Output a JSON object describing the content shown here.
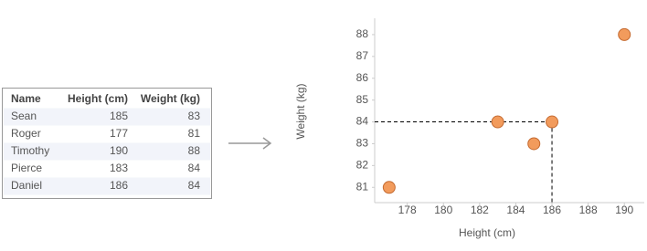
{
  "table": {
    "columns": [
      "Name",
      "Height (cm)",
      "Weight (kg)"
    ],
    "rows": [
      [
        "Sean",
        185,
        83
      ],
      [
        "Roger",
        177,
        81
      ],
      [
        "Timothy",
        190,
        88
      ],
      [
        "Pierce",
        183,
        84
      ],
      [
        "Daniel",
        186,
        84
      ]
    ]
  },
  "chart_data": {
    "type": "scatter",
    "x_label": "Height (cm)",
    "y_label": "Weight (kg)",
    "x": [
      185,
      177,
      190,
      183,
      186
    ],
    "values": [
      83,
      81,
      88,
      84,
      84
    ],
    "color": "#f29b5c",
    "xlim": [
      176.2,
      191.1
    ],
    "xticks": [
      178,
      180,
      182,
      184,
      186,
      188,
      190
    ],
    "ylim": [
      80.3,
      88.75
    ],
    "yticks": [
      81,
      82,
      83,
      84,
      85,
      86,
      87,
      88
    ],
    "grid": false
  }
}
